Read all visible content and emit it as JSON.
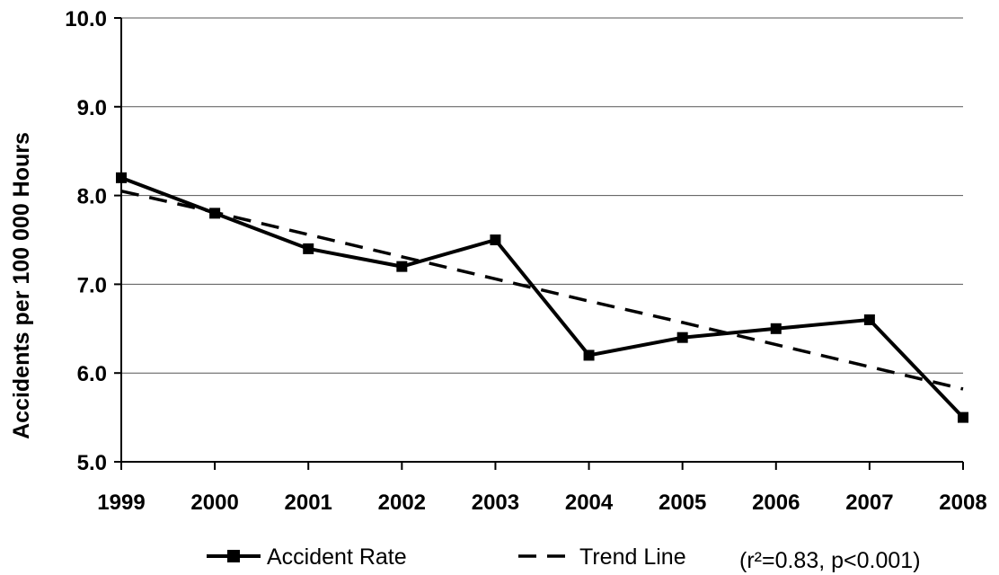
{
  "chart_data": {
    "type": "line",
    "title": "",
    "xlabel": "",
    "ylabel": "Accidents per 100 000 Hours",
    "x": [
      "1999",
      "2000",
      "2001",
      "2002",
      "2003",
      "2004",
      "2005",
      "2006",
      "2007",
      "2008"
    ],
    "ylim": [
      5.0,
      10.0
    ],
    "yticks": [
      "5.0",
      "6.0",
      "7.0",
      "8.0",
      "9.0",
      "10.0"
    ],
    "grid": "horizontal",
    "legend_position": "bottom",
    "series": [
      {
        "name": "Accident Rate",
        "style": "solid-line-square-markers",
        "color": "#000000",
        "values": [
          8.2,
          7.8,
          7.4,
          7.2,
          7.5,
          6.2,
          6.4,
          6.5,
          6.6,
          5.5
        ]
      },
      {
        "name": "Trend Line",
        "style": "dashed-line",
        "color": "#000000",
        "values": [
          8.05,
          7.81,
          7.56,
          7.31,
          7.06,
          6.81,
          6.57,
          6.32,
          6.07,
          5.82
        ]
      }
    ],
    "annotation": "(r²=0.83, p<0.001)"
  }
}
